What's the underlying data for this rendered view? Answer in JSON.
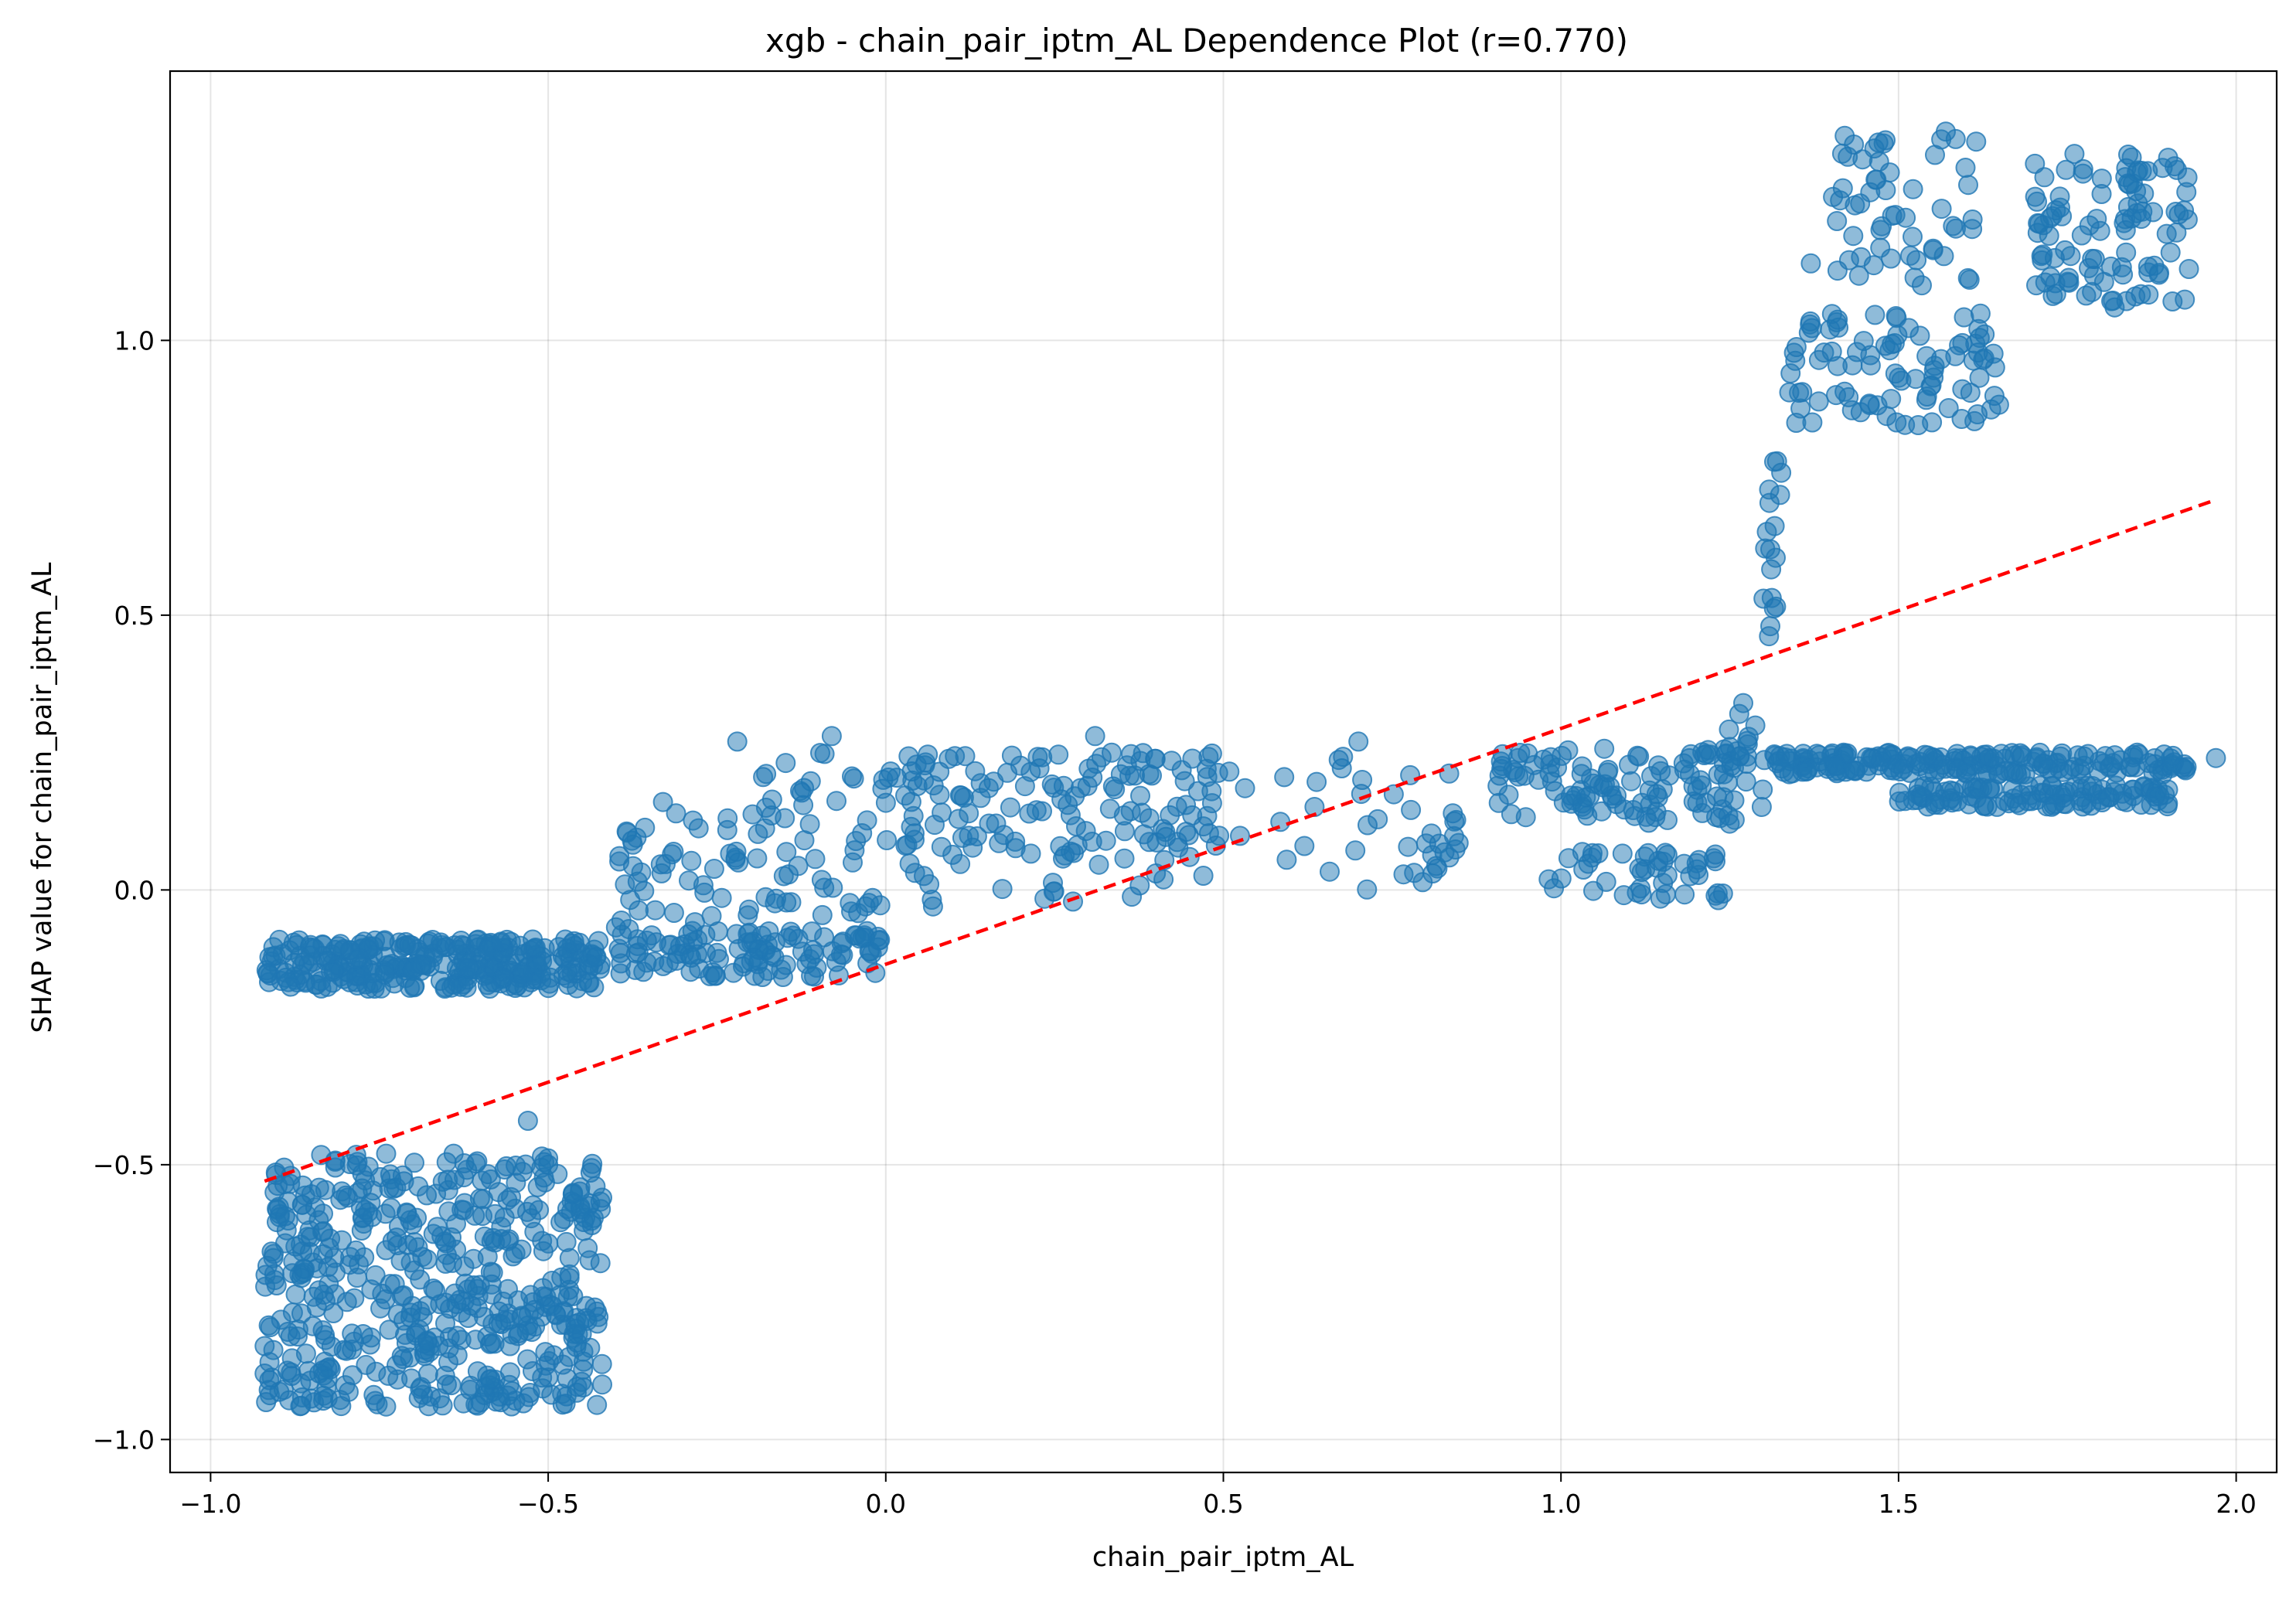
{
  "chart_data": {
    "type": "scatter",
    "title": "xgb - chain_pair_iptm_AL Dependence Plot (r=0.770)",
    "xlabel": "chain_pair_iptm_AL",
    "ylabel": "SHAP value for chain_pair_iptm_AL",
    "xlim": [
      -1.06,
      2.06
    ],
    "ylim": [
      -1.06,
      1.49
    ],
    "x_ticks": [
      -1.0,
      -0.5,
      0.0,
      0.5,
      1.0,
      1.5,
      2.0
    ],
    "x_tick_labels": [
      "−1.0",
      "−0.5",
      "0.0",
      "0.5",
      "1.0",
      "1.5",
      "2.0"
    ],
    "y_ticks": [
      -1.0,
      -0.5,
      0.0,
      0.5,
      1.0
    ],
    "y_tick_labels": [
      "−1.0",
      "−0.5",
      "0.0",
      "0.5",
      "1.0"
    ],
    "grid": true,
    "legend": "none",
    "point_color": "#1f77b4",
    "trend_color": "#ff0000",
    "trend_line": {
      "x": [
        -0.92,
        1.97
      ],
      "y": [
        -0.53,
        0.71
      ]
    },
    "clusters": [
      {
        "x": [
          -0.92,
          -0.42
        ],
        "y": [
          -0.18,
          -0.09
        ],
        "count": 320
      },
      {
        "x": [
          -0.92,
          -0.42
        ],
        "y": [
          -0.94,
          -0.48
        ],
        "count": 520
      },
      {
        "x": [
          -0.4,
          0.0
        ],
        "y": [
          -0.16,
          -0.07
        ],
        "count": 110
      },
      {
        "x": [
          -0.4,
          -0.2
        ],
        "y": [
          -0.1,
          0.14
        ],
        "count": 45
      },
      {
        "x": [
          -0.2,
          0.0
        ],
        "y": [
          -0.05,
          0.25
        ],
        "count": 50
      },
      {
        "x": [
          0.0,
          0.5
        ],
        "y": [
          0.08,
          0.25
        ],
        "count": 130
      },
      {
        "x": [
          0.0,
          0.5
        ],
        "y": [
          -0.03,
          0.08
        ],
        "count": 30
      },
      {
        "x": [
          0.5,
          0.85
        ],
        "y": [
          0.0,
          0.25
        ],
        "count": 40
      },
      {
        "x": [
          0.9,
          1.26
        ],
        "y": [
          0.12,
          0.26
        ],
        "count": 110
      },
      {
        "x": [
          0.98,
          1.24
        ],
        "y": [
          -0.02,
          0.07
        ],
        "count": 45
      },
      {
        "x": [
          1.24,
          1.3
        ],
        "y": [
          0.15,
          0.34
        ],
        "count": 20
      },
      {
        "x": [
          1.3,
          1.94
        ],
        "y": [
          0.21,
          0.25
        ],
        "count": 200
      },
      {
        "x": [
          1.5,
          1.9
        ],
        "y": [
          0.15,
          0.19
        ],
        "count": 110
      },
      {
        "x": [
          1.3,
          1.33
        ],
        "y": [
          0.46,
          0.78
        ],
        "count": 14
      },
      {
        "x": [
          1.33,
          1.65
        ],
        "y": [
          0.84,
          1.05
        ],
        "count": 90
      },
      {
        "x": [
          1.4,
          1.62
        ],
        "y": [
          1.1,
          1.38
        ],
        "count": 55
      },
      {
        "x": [
          1.7,
          1.93
        ],
        "y": [
          1.06,
          1.17
        ],
        "count": 40
      },
      {
        "x": [
          1.7,
          1.93
        ],
        "y": [
          1.19,
          1.34
        ],
        "count": 60
      }
    ],
    "points": [
      [
        -0.53,
        -0.42
      ],
      [
        -0.33,
        0.16
      ],
      [
        -0.22,
        0.27
      ],
      [
        -0.08,
        0.28
      ],
      [
        0.31,
        0.28
      ],
      [
        0.7,
        0.27
      ],
      [
        1.27,
        0.34
      ],
      [
        -0.03,
        -0.03
      ],
      [
        0.07,
        -0.03
      ],
      [
        0.81,
        0.03
      ],
      [
        1.37,
        1.14
      ],
      [
        1.57,
        1.38
      ],
      [
        1.47,
        1.36
      ],
      [
        1.82,
        1.06
      ],
      [
        1.93,
        1.13
      ],
      [
        1.31,
        0.62
      ],
      [
        1.3,
        0.53
      ],
      [
        1.31,
        0.48
      ],
      [
        1.32,
        0.78
      ],
      [
        1.34,
        0.94
      ],
      [
        -0.74,
        -0.48
      ],
      [
        -0.64,
        -0.48
      ],
      [
        -0.74,
        -0.94
      ],
      [
        -0.56,
        -0.92
      ],
      [
        -0.42,
        -0.9
      ],
      [
        -0.92,
        -0.83
      ],
      [
        -0.92,
        -0.88
      ],
      [
        -0.87,
        -0.8
      ],
      [
        -0.42,
        -0.56
      ],
      [
        -0.5,
        -0.5
      ],
      [
        1.97,
        0.24
      ],
      [
        1.88,
        0.17
      ],
      [
        0.4,
        0.03
      ],
      [
        0.45,
        0.06
      ],
      [
        0.62,
        0.08
      ]
    ]
  }
}
